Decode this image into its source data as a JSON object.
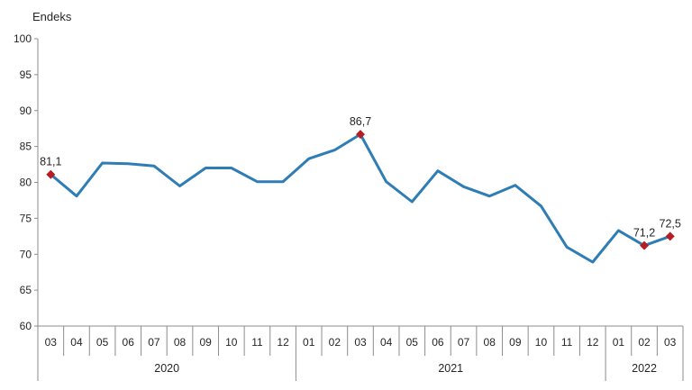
{
  "chart_data": {
    "type": "line",
    "ylabel": "Endeks",
    "ylim": [
      60,
      100
    ],
    "yticks": [
      60,
      65,
      70,
      75,
      80,
      85,
      90,
      95,
      100
    ],
    "grid": false,
    "legend": "none",
    "categories": [
      "03",
      "04",
      "05",
      "06",
      "07",
      "08",
      "09",
      "10",
      "11",
      "12",
      "01",
      "02",
      "03",
      "04",
      "05",
      "06",
      "07",
      "08",
      "09",
      "10",
      "11",
      "12",
      "01",
      "02",
      "03"
    ],
    "year_groups": [
      {
        "label": "2020",
        "start": 0,
        "end": 9
      },
      {
        "label": "2021",
        "start": 10,
        "end": 21
      },
      {
        "label": "2022",
        "start": 22,
        "end": 24
      }
    ],
    "series": [
      {
        "color": "#2e7db5",
        "values": [
          81.1,
          78.1,
          82.7,
          82.6,
          82.3,
          79.5,
          82.0,
          82.0,
          80.1,
          80.1,
          83.3,
          84.5,
          86.7,
          80.1,
          77.3,
          81.6,
          79.4,
          78.1,
          79.6,
          76.7,
          71.0,
          68.9,
          73.3,
          71.2,
          72.5
        ]
      }
    ],
    "highlighted_points": [
      {
        "index": 0,
        "label": "81,1"
      },
      {
        "index": 12,
        "label": "86,7"
      },
      {
        "index": 23,
        "label": "71,2"
      },
      {
        "index": 24,
        "label": "72,5"
      }
    ],
    "marker_color": "#b41e24"
  }
}
